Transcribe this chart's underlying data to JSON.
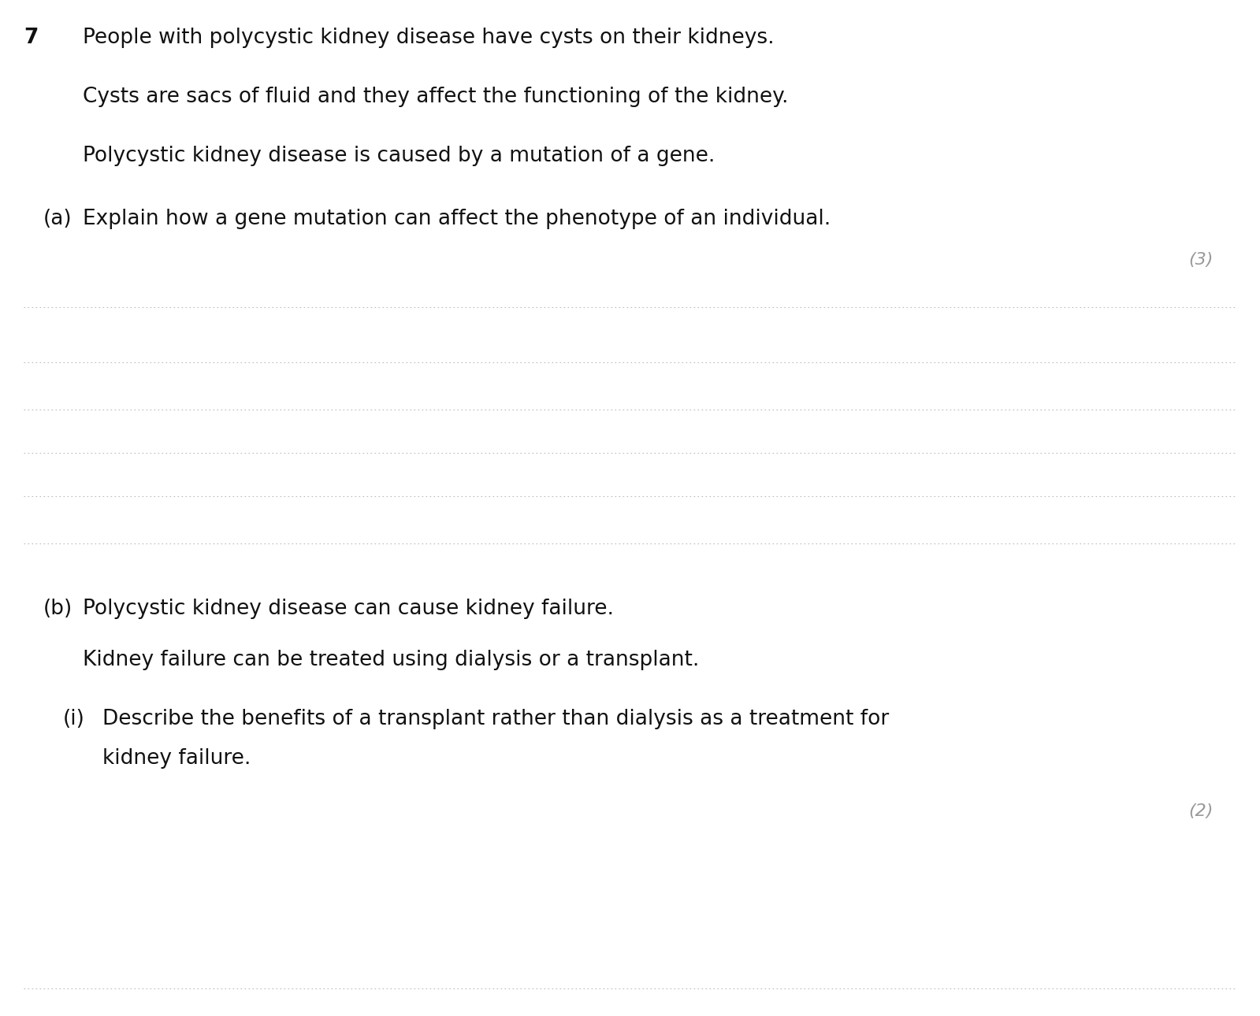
{
  "background_color": "#ffffff",
  "question_number": "7",
  "text_color": "#111111",
  "gray_color": "#999999",
  "paragraph1": "People with polycystic kidney disease have cysts on their kidneys.",
  "paragraph2": "Cysts are sacs of fluid and they affect the functioning of the kidney.",
  "paragraph3": "Polycystic kidney disease is caused by a mutation of a gene.",
  "part_a_label": "(a)",
  "part_a_text": "Explain how a gene mutation can affect the phenotype of an individual.",
  "part_a_marks": "(3)",
  "part_b_label": "(b)",
  "part_b_text": "Polycystic kidney disease can cause kidney failure.",
  "part_b_text2": "Kidney failure can be treated using dialysis or a transplant.",
  "part_bi_label": "(i)",
  "part_bi_line1": "Describe the benefits of a transplant rather than dialysis as a treatment for",
  "part_bi_line2": "kidney failure.",
  "part_bi_marks": "(2)",
  "main_fontsize": 19,
  "marks_fontsize": 16,
  "num_dotted_lines_a": 6,
  "num_dotted_lines_b": 1,
  "dot_color": "#bbbbbb",
  "dot_linewidth": 0.8
}
